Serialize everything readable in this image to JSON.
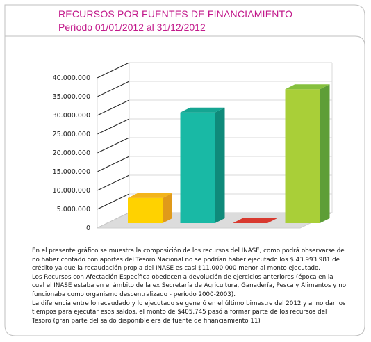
{
  "header": {
    "title": "RECURSOS POR FUENTES DE FINANCIAMIENTO",
    "subtitle": "Período 01/01/2012 al 31/12/2012"
  },
  "chart_data": {
    "type": "bar",
    "title": "RECURSOS POR FUENTES DE FINANCIAMIENTO",
    "subtitle": "Período 01/01/2012 al 31/12/2012",
    "xlabel": "",
    "ylabel": "",
    "ylim": [
      0,
      40000000
    ],
    "tick_labels": [
      "0",
      "5.000.000",
      "10.000.000",
      "15.000.000",
      "20.000.000",
      "25.000.000",
      "30.000.000",
      "35.000.000",
      "40.000.000"
    ],
    "tick_values": [
      0,
      5000000,
      10000000,
      15000000,
      20000000,
      25000000,
      30000000,
      35000000,
      40000000
    ],
    "grid": true,
    "three_d": true,
    "values": [
      6700000,
      29500000,
      0,
      35700000
    ],
    "bar_colors": [
      {
        "front": "#ffd200",
        "side": "#e09a1a",
        "top": "#f3b41a"
      },
      {
        "front": "#19b9a5",
        "side": "#0f8a7a",
        "top": "#15a592"
      },
      {
        "front": "#d8392f",
        "side": "#b02a22",
        "top": "#e85a4f"
      },
      {
        "front": "#a9cf38",
        "side": "#5e9e37",
        "top": "#86c03e"
      }
    ]
  },
  "description": {
    "paragraphs": [
      "En el presente gráfico se muestra la composición de los recursos del INASE, como podrá observarse de no haber contado con aportes del Tesoro Nacional no se podrían haber ejecutado los $ 43.993.981 de crédito ya que la recaudación propia del INASE es casi $11.000.000 menor al monto ejecutado.",
      "Los Recursos con Afectación Específica obedecen a devolución de ejercicios anteriores (época en la cual el INASE estaba en el ámbito de la ex Secretaría de Agricultura, Ganadería, Pesca y Alimentos  y no funcionaba como organismo descentralizado - período 2000-2003).",
      "La diferencia entre lo recaudado y lo ejecutado se generó en el último bimestre del 2012 y al no dar los tiempos para ejecutar esos saldos, el monto de $405.745 pasó  a formar parte de los recursos del Tesoro (gran parte del saldo disponible era de fuente de financiamiento 11)"
    ]
  }
}
